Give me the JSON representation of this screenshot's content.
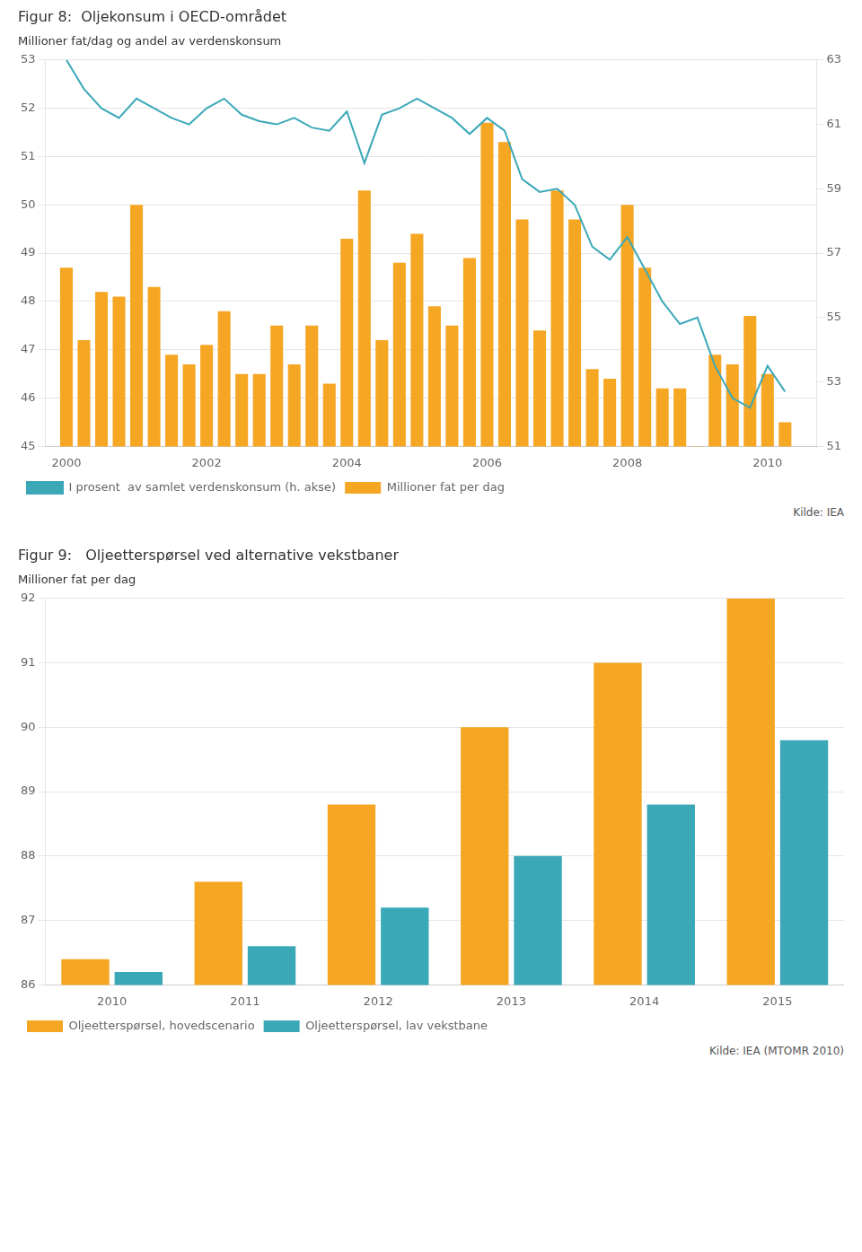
{
  "chart_data": [
    {
      "type": "bar",
      "title": "Figur 8:  Oljekonsum i OECD-området",
      "subtitle": "Millioner fat/dag og andel av verdenskonsum",
      "x": [
        2000,
        2000.25,
        2000.5,
        2000.75,
        2001,
        2001.25,
        2001.5,
        2001.75,
        2002,
        2002.25,
        2002.5,
        2002.75,
        2003,
        2003.25,
        2003.5,
        2003.75,
        2004,
        2004.25,
        2004.5,
        2004.75,
        2005,
        2005.25,
        2005.5,
        2005.75,
        2006,
        2006.25,
        2006.5,
        2006.75,
        2007,
        2007.25,
        2007.5,
        2007.75,
        2008,
        2008.25,
        2008.5,
        2008.75,
        2009,
        2009.25,
        2009.5,
        2009.75,
        2010,
        2010.25
      ],
      "series": [
        {
          "name": "Millioner fat per dag",
          "type": "bar",
          "color": "#F5A623",
          "values": [
            48.7,
            47.2,
            48.2,
            48.1,
            50.0,
            48.3,
            46.9,
            46.7,
            47.1,
            47.8,
            46.5,
            46.5,
            47.5,
            46.7,
            47.5,
            46.3,
            49.3,
            50.3,
            47.2,
            48.8,
            49.4,
            47.9,
            47.5,
            48.9,
            51.7,
            51.3,
            49.7,
            47.4,
            50.3,
            49.7,
            46.6,
            46.4,
            50.0,
            48.7,
            46.2,
            46.2,
            45.0,
            46.9,
            46.7,
            47.7,
            46.5,
            45.5
          ]
        },
        {
          "name": "I prosent  av samlet verdenskonsum (h. akse)",
          "type": "line",
          "color": "#3BA8B8",
          "axis": "y2",
          "values": [
            63.0,
            62.1,
            61.5,
            61.2,
            61.8,
            61.5,
            61.2,
            61.0,
            61.5,
            61.8,
            61.3,
            61.1,
            61.0,
            61.2,
            60.9,
            60.8,
            61.4,
            59.8,
            61.3,
            61.5,
            61.8,
            61.5,
            61.2,
            60.7,
            61.2,
            60.8,
            59.3,
            58.9,
            59.0,
            58.5,
            57.2,
            56.8,
            57.5,
            56.5,
            55.5,
            54.8,
            55.0,
            53.5,
            52.5,
            52.2,
            53.5,
            52.7
          ]
        }
      ],
      "xlim": [
        1999.7,
        2010.7
      ],
      "xticks": [
        2000,
        2002,
        2004,
        2006,
        2008,
        2010
      ],
      "ylim": [
        45,
        53
      ],
      "yticks": [
        45,
        46,
        47,
        48,
        49,
        50,
        51,
        52,
        53
      ],
      "y2lim": [
        51,
        63
      ],
      "y2ticks": [
        51,
        53,
        55,
        57,
        59,
        61,
        63
      ],
      "grid": "y",
      "legend": "bottom",
      "annotations": [
        "Kilde: IEA"
      ]
    },
    {
      "type": "bar",
      "title": "Figur 9:   Oljeetterspørsel ved alternative vekstbaner",
      "subtitle": "Millioner fat per dag",
      "categories": [
        "2010",
        "2011",
        "2012",
        "2013",
        "2014",
        "2015"
      ],
      "series": [
        {
          "name": "Oljeetterspørsel, hovedscenario",
          "color": "#F5A623",
          "values": [
            86.4,
            87.6,
            88.8,
            90.0,
            91.0,
            92.0
          ]
        },
        {
          "name": "Oljeetterspørsel, lav vekstbane",
          "color": "#3BA8B8",
          "values": [
            86.2,
            86.6,
            87.2,
            88.0,
            88.8,
            89.8
          ]
        }
      ],
      "ylim": [
        86,
        92
      ],
      "yticks": [
        86,
        87,
        88,
        89,
        90,
        91,
        92
      ],
      "grid": "y",
      "legend": "bottom",
      "annotations": [
        "Kilde: IEA (MTOMR 2010)"
      ]
    }
  ]
}
